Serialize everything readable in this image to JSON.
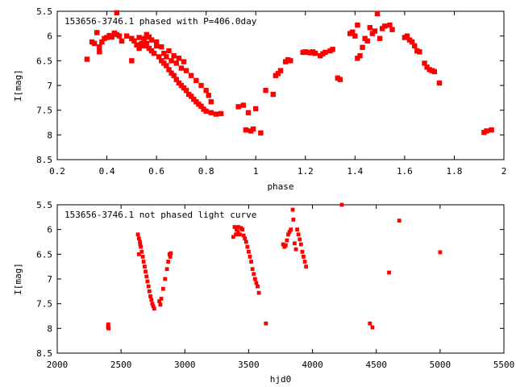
{
  "chart_data": [
    {
      "type": "scatter",
      "title": "153656-3746.1 phased with P=406.0day",
      "xlabel": "phase",
      "ylabel": "I[mag]",
      "xlim": [
        0.2,
        2.0
      ],
      "ylim": [
        5.5,
        8.5
      ],
      "y_inverted": true,
      "x_ticks": [
        0.2,
        0.4,
        0.6,
        0.8,
        1.0,
        1.2,
        1.4,
        1.6,
        1.8,
        2.0
      ],
      "x_tick_labels": [
        "0.2",
        "0.4",
        "0.6",
        "0.8",
        "1",
        "1.2",
        "1.4",
        "1.6",
        "1.8",
        "2"
      ],
      "y_ticks": [
        5.5,
        6.0,
        6.5,
        7.0,
        7.5,
        8.0,
        8.5
      ],
      "y_tick_labels": [
        "5.5",
        "6",
        "6.5",
        "7",
        "7.5",
        "8",
        "8.5"
      ],
      "grid": false,
      "marker_color": "#ff0000",
      "points": [
        [
          0.32,
          6.47
        ],
        [
          0.34,
          6.12
        ],
        [
          0.35,
          6.15
        ],
        [
          0.36,
          5.93
        ],
        [
          0.37,
          6.22
        ],
        [
          0.37,
          6.32
        ],
        [
          0.38,
          6.12
        ],
        [
          0.39,
          6.05
        ],
        [
          0.4,
          6.03
        ],
        [
          0.41,
          5.99
        ],
        [
          0.42,
          6.02
        ],
        [
          0.43,
          5.94
        ],
        [
          0.44,
          5.97
        ],
        [
          0.44,
          5.53
        ],
        [
          0.45,
          6.0
        ],
        [
          0.46,
          6.1
        ],
        [
          0.48,
          6.0
        ],
        [
          0.5,
          6.05
        ],
        [
          0.51,
          6.1
        ],
        [
          0.52,
          6.18
        ],
        [
          0.53,
          6.03
        ],
        [
          0.54,
          6.15
        ],
        [
          0.55,
          6.2
        ],
        [
          0.56,
          6.15
        ],
        [
          0.57,
          6.25
        ],
        [
          0.58,
          6.3
        ],
        [
          0.59,
          6.35
        ],
        [
          0.6,
          6.2
        ],
        [
          0.61,
          6.42
        ],
        [
          0.62,
          6.5
        ],
        [
          0.63,
          6.55
        ],
        [
          0.64,
          6.6
        ],
        [
          0.65,
          6.68
        ],
        [
          0.66,
          6.75
        ],
        [
          0.67,
          6.8
        ],
        [
          0.68,
          6.88
        ],
        [
          0.69,
          6.95
        ],
        [
          0.7,
          7.0
        ],
        [
          0.71,
          7.05
        ],
        [
          0.72,
          7.1
        ],
        [
          0.73,
          7.18
        ],
        [
          0.74,
          7.22
        ],
        [
          0.75,
          7.28
        ],
        [
          0.76,
          7.33
        ],
        [
          0.77,
          7.38
        ],
        [
          0.78,
          7.42
        ],
        [
          0.79,
          7.48
        ],
        [
          0.8,
          7.52
        ],
        [
          0.82,
          7.55
        ],
        [
          0.84,
          7.58
        ],
        [
          0.86,
          7.57
        ],
        [
          0.62,
          6.22
        ],
        [
          0.63,
          6.35
        ],
        [
          0.64,
          6.42
        ],
        [
          0.66,
          6.5
        ],
        [
          0.68,
          6.55
        ],
        [
          0.7,
          6.65
        ],
        [
          0.72,
          6.7
        ],
        [
          0.74,
          6.8
        ],
        [
          0.76,
          6.9
        ],
        [
          0.78,
          7.0
        ],
        [
          0.8,
          7.1
        ],
        [
          0.81,
          7.2
        ],
        [
          0.82,
          7.33
        ],
        [
          0.55,
          6.05
        ],
        [
          0.56,
          5.97
        ],
        [
          0.57,
          6.02
        ],
        [
          0.58,
          6.08
        ],
        [
          0.6,
          6.12
        ],
        [
          0.53,
          6.25
        ],
        [
          0.5,
          6.5
        ],
        [
          0.65,
          6.3
        ],
        [
          0.67,
          6.4
        ],
        [
          0.69,
          6.45
        ],
        [
          0.71,
          6.52
        ],
        [
          0.93,
          7.43
        ],
        [
          0.95,
          7.4
        ],
        [
          0.96,
          7.9
        ],
        [
          0.97,
          7.55
        ],
        [
          0.98,
          7.92
        ],
        [
          0.99,
          7.88
        ],
        [
          1.0,
          7.47
        ],
        [
          1.02,
          7.96
        ],
        [
          1.04,
          7.1
        ],
        [
          1.07,
          7.18
        ],
        [
          1.08,
          6.8
        ],
        [
          1.09,
          6.76
        ],
        [
          1.1,
          6.7
        ],
        [
          1.12,
          6.52
        ],
        [
          1.13,
          6.48
        ],
        [
          1.14,
          6.5
        ],
        [
          1.19,
          6.33
        ],
        [
          1.2,
          6.32
        ],
        [
          1.21,
          6.33
        ],
        [
          1.22,
          6.34
        ],
        [
          1.23,
          6.32
        ],
        [
          1.24,
          6.35
        ],
        [
          1.26,
          6.4
        ],
        [
          1.27,
          6.36
        ],
        [
          1.28,
          6.33
        ],
        [
          1.3,
          6.3
        ],
        [
          1.31,
          6.27
        ],
        [
          1.33,
          6.85
        ],
        [
          1.34,
          6.88
        ],
        [
          1.38,
          5.95
        ],
        [
          1.39,
          5.92
        ],
        [
          1.4,
          6.0
        ],
        [
          1.41,
          5.78
        ],
        [
          1.41,
          6.45
        ],
        [
          1.42,
          6.4
        ],
        [
          1.43,
          6.23
        ],
        [
          1.44,
          6.05
        ],
        [
          1.45,
          6.1
        ],
        [
          1.46,
          5.83
        ],
        [
          1.47,
          5.95
        ],
        [
          1.48,
          5.9
        ],
        [
          1.49,
          5.55
        ],
        [
          1.5,
          6.05
        ],
        [
          1.51,
          5.85
        ],
        [
          1.52,
          5.8
        ],
        [
          1.54,
          5.78
        ],
        [
          1.55,
          5.87
        ],
        [
          1.6,
          6.03
        ],
        [
          1.61,
          6.0
        ],
        [
          1.62,
          6.08
        ],
        [
          1.63,
          6.12
        ],
        [
          1.64,
          6.2
        ],
        [
          1.65,
          6.3
        ],
        [
          1.66,
          6.32
        ],
        [
          1.68,
          6.55
        ],
        [
          1.69,
          6.63
        ],
        [
          1.7,
          6.68
        ],
        [
          1.71,
          6.7
        ],
        [
          1.72,
          6.72
        ],
        [
          1.74,
          6.95
        ],
        [
          1.92,
          7.95
        ],
        [
          1.93,
          7.92
        ],
        [
          1.95,
          7.9
        ]
      ]
    },
    {
      "type": "scatter",
      "title": "153656-3746.1 not phased light curve",
      "xlabel": "hjd0",
      "ylabel": "I[mag]",
      "xlim": [
        2000,
        5500
      ],
      "ylim": [
        5.5,
        8.5
      ],
      "y_inverted": true,
      "x_ticks": [
        2000,
        2500,
        3000,
        3500,
        4000,
        4500,
        5000,
        5500
      ],
      "x_tick_labels": [
        "2000",
        "2500",
        "3000",
        "3500",
        "4000",
        "4500",
        "5000",
        "5500"
      ],
      "y_ticks": [
        5.5,
        6.0,
        6.5,
        7.0,
        7.5,
        8.0,
        8.5
      ],
      "y_tick_labels": [
        "5.5",
        "6",
        "6.5",
        "7",
        "7.5",
        "8",
        "8.5"
      ],
      "grid": false,
      "marker_color": "#ff0000",
      "points": [
        [
          2398,
          7.97
        ],
        [
          2400,
          7.92
        ],
        [
          2402,
          8.0
        ],
        [
          2632,
          6.1
        ],
        [
          2640,
          6.18
        ],
        [
          2648,
          6.25
        ],
        [
          2655,
          6.35
        ],
        [
          2662,
          6.45
        ],
        [
          2670,
          6.55
        ],
        [
          2677,
          6.65
        ],
        [
          2685,
          6.75
        ],
        [
          2692,
          6.85
        ],
        [
          2700,
          6.95
        ],
        [
          2707,
          7.05
        ],
        [
          2715,
          7.15
        ],
        [
          2722,
          7.25
        ],
        [
          2730,
          7.35
        ],
        [
          2738,
          7.42
        ],
        [
          2745,
          7.5
        ],
        [
          2752,
          7.55
        ],
        [
          2760,
          7.6
        ],
        [
          2640,
          6.5
        ],
        [
          2650,
          6.3
        ],
        [
          2800,
          7.45
        ],
        [
          2808,
          7.52
        ],
        [
          2815,
          7.4
        ],
        [
          2830,
          7.2
        ],
        [
          2845,
          7.0
        ],
        [
          2860,
          6.8
        ],
        [
          2870,
          6.65
        ],
        [
          2880,
          6.5
        ],
        [
          2885,
          6.55
        ],
        [
          2890,
          6.48
        ],
        [
          3380,
          6.15
        ],
        [
          3390,
          5.95
        ],
        [
          3400,
          6.1
        ],
        [
          3405,
          6.0
        ],
        [
          3415,
          6.05
        ],
        [
          3420,
          5.95
        ],
        [
          3430,
          6.1
        ],
        [
          3440,
          5.97
        ],
        [
          3450,
          6.0
        ],
        [
          3460,
          6.12
        ],
        [
          3470,
          6.18
        ],
        [
          3480,
          6.25
        ],
        [
          3490,
          6.35
        ],
        [
          3500,
          6.45
        ],
        [
          3510,
          6.55
        ],
        [
          3520,
          6.65
        ],
        [
          3530,
          6.8
        ],
        [
          3540,
          6.9
        ],
        [
          3550,
          7.0
        ],
        [
          3560,
          7.08
        ],
        [
          3570,
          7.15
        ],
        [
          3580,
          7.28
        ],
        [
          3635,
          7.9
        ],
        [
          3770,
          6.3
        ],
        [
          3780,
          6.35
        ],
        [
          3790,
          6.32
        ],
        [
          3800,
          6.22
        ],
        [
          3810,
          6.1
        ],
        [
          3820,
          6.05
        ],
        [
          3830,
          6.0
        ],
        [
          3845,
          5.6
        ],
        [
          3850,
          5.8
        ],
        [
          3860,
          6.28
        ],
        [
          3870,
          6.4
        ],
        [
          3880,
          6.0
        ],
        [
          3890,
          6.1
        ],
        [
          3900,
          6.2
        ],
        [
          3910,
          6.3
        ],
        [
          3920,
          6.45
        ],
        [
          3930,
          6.55
        ],
        [
          3940,
          6.65
        ],
        [
          3950,
          6.75
        ],
        [
          4230,
          5.5
        ],
        [
          4450,
          7.9
        ],
        [
          4470,
          7.98
        ],
        [
          4600,
          6.87
        ],
        [
          4680,
          5.82
        ],
        [
          5000,
          6.46
        ]
      ]
    }
  ]
}
